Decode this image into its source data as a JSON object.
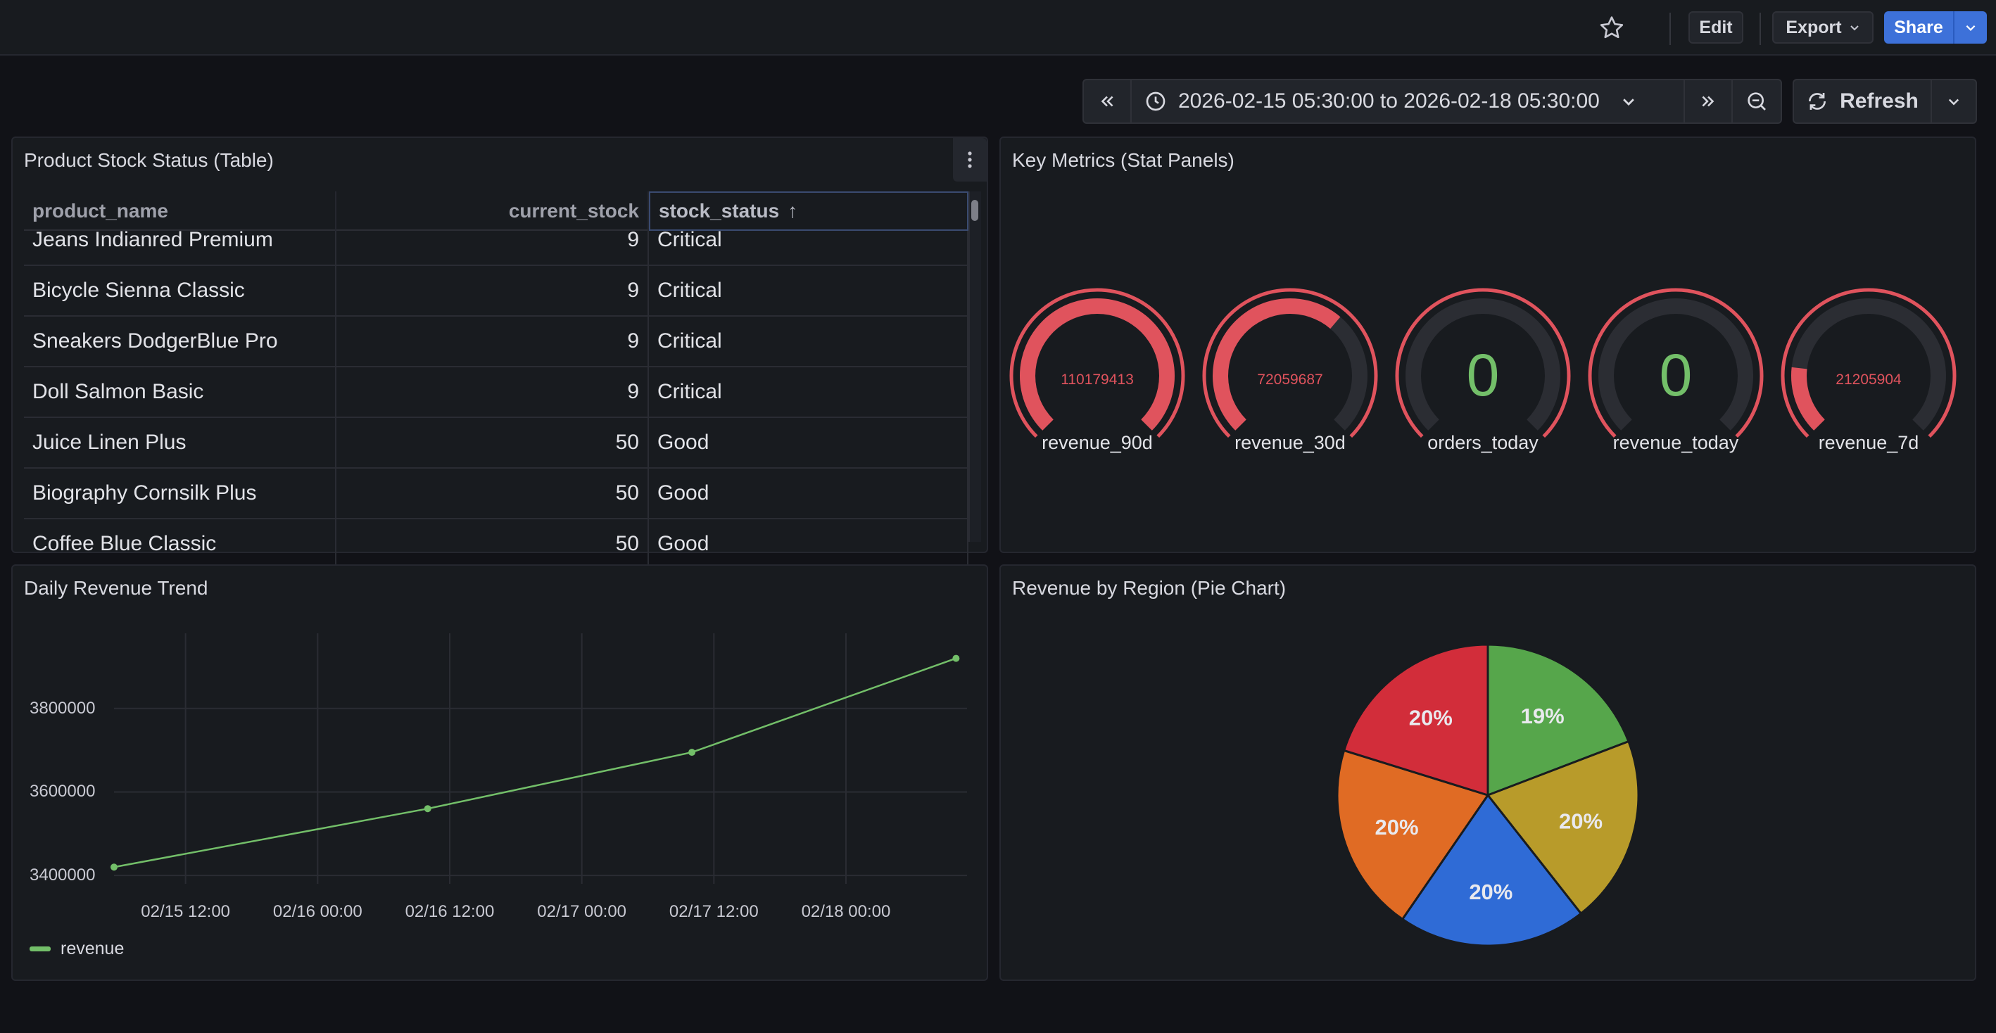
{
  "topbar": {
    "edit_label": "Edit",
    "export_label": "Export",
    "share_label": "Share"
  },
  "time": {
    "range_label": "2026-02-15 05:30:00 to 2026-02-18 05:30:00",
    "refresh_label": "Refresh"
  },
  "panels": {
    "table": {
      "title": "Product Stock Status (Table)",
      "columns": [
        "product_name",
        "current_stock",
        "stock_status"
      ],
      "sort_indicator": "↑",
      "rows": [
        [
          "Jeans Indianred Premium",
          "9",
          "Critical"
        ],
        [
          "Bicycle Sienna Classic",
          "9",
          "Critical"
        ],
        [
          "Sneakers DodgerBlue Pro",
          "9",
          "Critical"
        ],
        [
          "Doll Salmon Basic",
          "9",
          "Critical"
        ],
        [
          "Juice Linen Plus",
          "50",
          "Good"
        ],
        [
          "Biography Cornsilk Plus",
          "50",
          "Good"
        ],
        [
          "Coffee Blue Classic",
          "50",
          "Good"
        ]
      ]
    },
    "stats": {
      "title": "Key Metrics (Stat Panels)",
      "gauges": [
        {
          "label": "revenue_90d",
          "value": "110179413",
          "fill": 1.0,
          "color": "#e0535d",
          "big": false
        },
        {
          "label": "revenue_30d",
          "value": "72059687",
          "fill": 0.65,
          "color": "#e0535d",
          "big": false
        },
        {
          "label": "orders_today",
          "value": "0",
          "fill": 0.0,
          "color": "#73bf69",
          "big": true
        },
        {
          "label": "revenue_today",
          "value": "0",
          "fill": 0.0,
          "color": "#73bf69",
          "big": true
        },
        {
          "label": "revenue_7d",
          "value": "21205904",
          "fill": 0.19,
          "color": "#e0535d",
          "big": false
        }
      ]
    },
    "line": {
      "title": "Daily Revenue Trend"
    },
    "pie": {
      "title": "Revenue by Region (Pie Chart)"
    }
  },
  "chart_data": [
    {
      "type": "line",
      "title": "Daily Revenue Trend",
      "x": [
        "2026-02-15 05:30",
        "2026-02-16 10:00",
        "2026-02-17 10:00",
        "2026-02-18 10:00"
      ],
      "series": [
        {
          "name": "revenue",
          "values": [
            3420000,
            3560000,
            3695000,
            3920000
          ],
          "color": "#73bf69"
        }
      ],
      "xticks": [
        "02/15 12:00",
        "02/16 00:00",
        "02/16 12:00",
        "02/17 00:00",
        "02/17 12:00",
        "02/18 00:00"
      ],
      "yticks": [
        "3400000",
        "3600000",
        "3800000"
      ],
      "ylim": [
        3380000,
        3980000
      ],
      "grid": true,
      "legend": "bottom-left"
    },
    {
      "type": "pie",
      "title": "Revenue by Region (Pie Chart)",
      "slices": [
        {
          "label": "19%",
          "value": 19,
          "color": "#56a64b"
        },
        {
          "label": "20%",
          "value": 20,
          "color": "#b89b2a"
        },
        {
          "label": "20%",
          "value": 20,
          "color": "#2f6bd6"
        },
        {
          "label": "20%",
          "value": 20,
          "color": "#e06b24"
        },
        {
          "label": "20%",
          "value": 20,
          "color": "#d22d3a"
        }
      ]
    }
  ]
}
